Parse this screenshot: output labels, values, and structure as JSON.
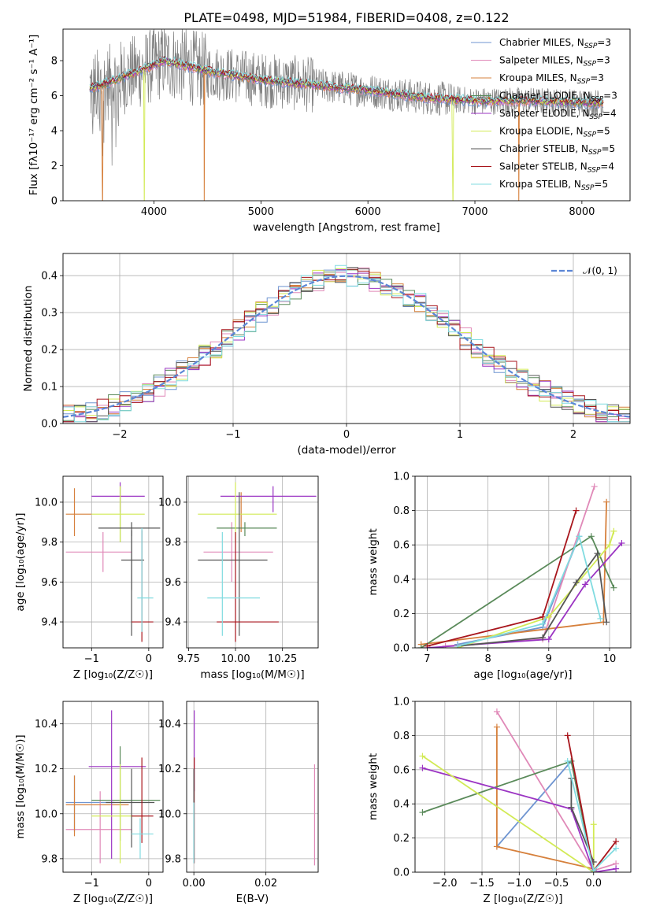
{
  "figure_title": "PLATE=0498, MJD=51984, FIBERID=0408, z=0.122",
  "colors": {
    "miles_chabrier": "#6f95d1",
    "miles_salpeter": "#e089b8",
    "miles_kroupa": "#d6803c",
    "elodie_chabrier": "#5a8a5a",
    "elodie_salpeter": "#9b34c3",
    "elodie_kroupa": "#d2ea55",
    "stelib_chabrier": "#555555",
    "stelib_salpeter": "#a8151c",
    "stelib_kroupa": "#80dbe0",
    "data": "#7f7f7f",
    "normal": "#5b86d6"
  },
  "chart_data": [
    {
      "id": "spectrum",
      "type": "line",
      "title": "PLATE=0498, MJD=51984, FIBERID=0408, z=0.122",
      "xlabel": "wavelength [Angstrom, rest frame]",
      "ylabel": "Flux [fλ10⁻¹⁷ erg cm⁻² s⁻¹ A⁻¹]",
      "xlim": [
        3150,
        8450
      ],
      "ylim": [
        0,
        9.8
      ],
      "xticks": [
        4000,
        5000,
        6000,
        7000,
        8000
      ],
      "yticks": [
        0,
        2,
        4,
        6,
        8
      ],
      "legend": "top-right",
      "grid": false,
      "data_range": [
        3400,
        8200
      ],
      "continuum": {
        "x": [
          3400,
          3600,
          3900,
          4100,
          4500,
          5000,
          5500,
          6000,
          6500,
          7000,
          7500,
          8000,
          8200
        ],
        "y": [
          6.4,
          6.8,
          7.5,
          8.0,
          7.4,
          6.9,
          6.6,
          6.3,
          5.9,
          5.7,
          5.7,
          5.6,
          5.6
        ]
      },
      "series": [
        {
          "name": "Chabrier MILES, N_SSP=3",
          "color_key": "miles_chabrier",
          "dropouts": []
        },
        {
          "name": "Salpeter MILES, N_SSP=3",
          "color_key": "miles_salpeter",
          "dropouts": []
        },
        {
          "name": "Kroupa MILES, N_SSP=3",
          "color_key": "miles_kroupa",
          "dropouts": [
            3520,
            4470,
            7410
          ]
        },
        {
          "name": "Chabrier ELODIE, N_SSP=3",
          "color_key": "elodie_chabrier",
          "dropouts": []
        },
        {
          "name": "Salpeter ELODIE, N_SSP=4",
          "color_key": "elodie_salpeter",
          "dropouts": []
        },
        {
          "name": "Kroupa ELODIE, N_SSP=5",
          "color_key": "elodie_kroupa",
          "dropouts": [
            3910,
            6795
          ]
        },
        {
          "name": "Chabrier STELIB, N_SSP=5",
          "color_key": "stelib_chabrier",
          "dropouts": []
        },
        {
          "name": "Salpeter STELIB, N_SSP=4",
          "color_key": "stelib_salpeter",
          "dropouts": []
        },
        {
          "name": "Kroupa STELIB, N_SSP=5",
          "color_key": "stelib_kroupa",
          "dropouts": []
        }
      ]
    },
    {
      "id": "residuals",
      "type": "line",
      "xlabel": "(data-model)/error",
      "ylabel": "Normed distribution",
      "xlim": [
        -2.5,
        2.5
      ],
      "ylim": [
        0,
        0.46
      ],
      "xticks": [
        -2,
        -1,
        0,
        1,
        2
      ],
      "yticks": [
        0.0,
        0.1,
        0.2,
        0.3,
        0.4
      ],
      "grid": true,
      "legend": "top-right",
      "normal_label": "𝒩(0, 1)",
      "bin_width": 0.1,
      "bins_from": -2.5,
      "bins_to": 2.5
    },
    {
      "id": "age_vs_Z",
      "type": "scatter",
      "xlabel": "Z [log₁₀(Z/Z☉)]",
      "ylabel": "age  [log₁₀(age/yr)]",
      "xlim": [
        -1.5,
        0.25
      ],
      "ylim": [
        9.27,
        10.13
      ],
      "xticks": [
        -1,
        0
      ],
      "yticks": [
        9.4,
        9.6,
        9.8,
        10.0
      ],
      "grid": true,
      "points": [
        {
          "k": "miles_chabrier",
          "x": -1.3,
          "xe": [
            -1.3,
            -1.3
          ],
          "y": 9.94,
          "ye": [
            9.94,
            9.94
          ]
        },
        {
          "k": "miles_salpeter",
          "x": -0.8,
          "xe": [
            -1.45,
            -0.3
          ],
          "y": 9.75,
          "ye": [
            9.65,
            9.85
          ]
        },
        {
          "k": "miles_kroupa",
          "x": -1.3,
          "xe": [
            -1.45,
            -1.0
          ],
          "y": 9.94,
          "ye": [
            9.83,
            10.07
          ]
        },
        {
          "k": "elodie_chabrier",
          "x": -0.5,
          "xe": [
            -0.5,
            -0.5
          ],
          "y": 9.94,
          "ye": [
            9.8,
            10.08
          ]
        },
        {
          "k": "elodie_salpeter",
          "x": -0.5,
          "xe": [
            -1.0,
            -0.07
          ],
          "y": 10.03,
          "ye": [
            9.95,
            10.1
          ]
        },
        {
          "k": "elodie_kroupa",
          "x": -0.5,
          "xe": [
            -1.0,
            -0.07
          ],
          "y": 9.94,
          "ye": [
            9.8,
            10.08
          ]
        },
        {
          "k": "stelib_chabrier",
          "x": -0.3,
          "xe": [
            -0.88,
            0.2
          ],
          "y": 9.87,
          "ye": [
            9.83,
            9.9
          ]
        },
        {
          "k": "stelib_chabrier",
          "x": -0.3,
          "xe": [
            -0.3,
            -0.3
          ],
          "y": 9.71,
          "ye": [
            9.56,
            9.86
          ]
        },
        {
          "k": "stelib_chabrier",
          "x": -0.3,
          "xe": [
            -0.48,
            -0.08
          ],
          "y": 9.71,
          "ye": [
            9.33,
            9.86
          ]
        },
        {
          "k": "stelib_salpeter",
          "x": -0.12,
          "xe": [
            -0.3,
            0.08
          ],
          "y": 9.4,
          "ye": [
            9.3,
            9.86
          ]
        },
        {
          "k": "stelib_kroupa",
          "x": -0.12,
          "xe": [
            -0.2,
            0.08
          ],
          "y": 9.52,
          "ye": [
            9.35,
            9.87
          ]
        }
      ]
    },
    {
      "id": "age_vs_mass",
      "type": "scatter",
      "xlabel": "mass [log₁₀(M/M☉)]",
      "ylabel": "",
      "xlim": [
        9.74,
        10.44
      ],
      "ylim": [
        9.27,
        10.13
      ],
      "xticks": [
        9.75,
        10.0,
        10.25
      ],
      "xticklabels": [
        "9.75",
        "10.00",
        "10.25"
      ],
      "yticks": [
        9.4,
        9.6,
        9.8,
        10.0
      ],
      "grid": true,
      "points": [
        {
          "k": "miles_chabrier",
          "x": 10.05,
          "xe": [
            10.05,
            10.05
          ],
          "y": 10.0,
          "ye": [
            10.0,
            10.0
          ]
        },
        {
          "k": "miles_salpeter",
          "x": 9.98,
          "xe": [
            9.83,
            10.2
          ],
          "y": 9.75,
          "ye": [
            9.6,
            9.9
          ]
        },
        {
          "k": "miles_kroupa",
          "x": 10.03,
          "xe": [
            10.03,
            10.03
          ],
          "y": 9.94,
          "ye": [
            9.85,
            10.05
          ]
        },
        {
          "k": "elodie_chabrier",
          "x": 10.05,
          "xe": [
            9.9,
            10.22
          ],
          "y": 9.87,
          "ye": [
            9.83,
            9.9
          ]
        },
        {
          "k": "elodie_salpeter",
          "x": 10.2,
          "xe": [
            9.92,
            10.43
          ],
          "y": 10.03,
          "ye": [
            9.95,
            10.08
          ]
        },
        {
          "k": "elodie_kroupa",
          "x": 10.0,
          "xe": [
            9.8,
            10.22
          ],
          "y": 9.94,
          "ye": [
            9.8,
            10.1
          ]
        },
        {
          "k": "stelib_chabrier",
          "x": 10.02,
          "xe": [
            9.8,
            10.17
          ],
          "y": 9.71,
          "ye": [
            9.33,
            10.05
          ]
        },
        {
          "k": "stelib_salpeter",
          "x": 10.0,
          "xe": [
            9.9,
            10.23
          ],
          "y": 9.4,
          "ye": [
            9.3,
            9.85
          ]
        },
        {
          "k": "stelib_kroupa",
          "x": 9.93,
          "xe": [
            9.85,
            10.13
          ],
          "y": 9.52,
          "ye": [
            9.33,
            9.85
          ]
        }
      ]
    },
    {
      "id": "mass_weight_vs_age",
      "type": "line",
      "xlabel": "age  [log₁₀(age/yr)]",
      "ylabel": "mass weight",
      "xlim": [
        6.8,
        10.35
      ],
      "ylim": [
        0,
        1.0
      ],
      "xticks": [
        7,
        8,
        9,
        10
      ],
      "yticks": [
        0.0,
        0.2,
        0.4,
        0.6,
        0.8,
        1.0
      ],
      "grid": true,
      "series": [
        {
          "k": "miles_chabrier",
          "x": [
            7.5,
            8.9,
            9.5
          ],
          "y": [
            0.02,
            0.12,
            0.65
          ]
        },
        {
          "k": "miles_salpeter",
          "x": [
            7.3,
            8.9,
            9.75
          ],
          "y": [
            0.01,
            0.05,
            0.94
          ]
        },
        {
          "k": "miles_kroupa",
          "x": [
            6.9,
            9.9,
            9.95
          ],
          "y": [
            0.02,
            0.15,
            0.85
          ]
        },
        {
          "k": "elodie_chabrier",
          "x": [
            6.9,
            9.7,
            10.07
          ],
          "y": [
            0.0,
            0.65,
            0.35
          ]
        },
        {
          "k": "elodie_salpeter",
          "x": [
            7.0,
            9.0,
            9.6,
            10.2
          ],
          "y": [
            0.0,
            0.05,
            0.37,
            0.61
          ]
        },
        {
          "k": "elodie_kroupa",
          "x": [
            7.5,
            9.0,
            10.0,
            10.07
          ],
          "y": [
            0.0,
            0.18,
            0.6,
            0.68
          ]
        },
        {
          "k": "stelib_chabrier",
          "x": [
            7.5,
            8.9,
            9.45,
            9.8,
            9.95
          ],
          "y": [
            0.01,
            0.06,
            0.38,
            0.55,
            0.15
          ]
        },
        {
          "k": "stelib_salpeter",
          "x": [
            7.0,
            8.9,
            9.45
          ],
          "y": [
            0.01,
            0.18,
            0.8
          ]
        },
        {
          "k": "stelib_kroupa",
          "x": [
            7.5,
            8.9,
            9.5,
            9.85
          ],
          "y": [
            0.01,
            0.14,
            0.65,
            0.17
          ]
        }
      ]
    },
    {
      "id": "mass_vs_Z",
      "type": "scatter",
      "xlabel": "Z [log₁₀(Z/Z☉)]",
      "ylabel": "mass [log₁₀(M/M☉)]",
      "xlim": [
        -1.5,
        0.25
      ],
      "ylim": [
        9.74,
        10.5
      ],
      "xticks": [
        -1,
        0
      ],
      "yticks": [
        9.8,
        10.0,
        10.2,
        10.4
      ],
      "grid": true,
      "points": [
        {
          "k": "miles_chabrier",
          "x": -1.3,
          "xe": [
            -1.45,
            -0.6
          ],
          "y": 10.05,
          "ye": [
            9.92,
            10.17
          ]
        },
        {
          "k": "miles_salpeter",
          "x": -0.85,
          "xe": [
            -1.45,
            -0.3
          ],
          "y": 9.93,
          "ye": [
            9.78,
            10.1
          ]
        },
        {
          "k": "miles_kroupa",
          "x": -1.3,
          "xe": [
            -1.45,
            -0.35
          ],
          "y": 10.04,
          "ye": [
            9.9,
            10.17
          ]
        },
        {
          "k": "elodie_chabrier",
          "x": -0.5,
          "xe": [
            -1.0,
            0.2
          ],
          "y": 10.06,
          "ye": [
            9.88,
            10.3
          ]
        },
        {
          "k": "elodie_salpeter",
          "x": -0.65,
          "xe": [
            -1.05,
            -0.05
          ],
          "y": 10.21,
          "ye": [
            9.8,
            10.46
          ]
        },
        {
          "k": "elodie_kroupa",
          "x": -0.5,
          "xe": [
            -1.0,
            -0.07
          ],
          "y": 9.99,
          "ye": [
            9.78,
            10.22
          ]
        },
        {
          "k": "stelib_chabrier",
          "x": -0.3,
          "xe": [
            -0.75,
            0.1
          ],
          "y": 10.05,
          "ye": [
            9.85,
            10.2
          ]
        },
        {
          "k": "stelib_salpeter",
          "x": -0.12,
          "xe": [
            -0.3,
            0.08
          ],
          "y": 9.99,
          "ye": [
            9.87,
            10.25
          ]
        },
        {
          "k": "stelib_kroupa",
          "x": -0.15,
          "xe": [
            -0.3,
            0.08
          ],
          "y": 9.91,
          "ye": [
            9.8,
            9.98
          ]
        }
      ]
    },
    {
      "id": "mass_vs_EBV",
      "type": "scatter",
      "xlabel": "E(B-V)",
      "ylabel": "",
      "xlim": [
        -0.002,
        0.0345
      ],
      "ylim": [
        9.74,
        10.5
      ],
      "xticks": [
        0.0,
        0.02
      ],
      "xticklabels": [
        "0.00",
        "0.02"
      ],
      "yticks": [
        9.8,
        10.0,
        10.2,
        10.4
      ],
      "grid": true,
      "points": [
        {
          "k": "miles_salpeter",
          "x": 0.0335,
          "xe": [
            0.0335,
            0.0335
          ],
          "y": 10.0,
          "ye": [
            9.77,
            10.22
          ]
        },
        {
          "k": "elodie_salpeter",
          "x": 0.0001,
          "xe": [
            0.0001,
            0.0001
          ],
          "y": 10.3,
          "ye": [
            10.1,
            10.46
          ]
        },
        {
          "k": "stelib_salpeter",
          "x": 0.0001,
          "xe": [
            0.0001,
            0.0001
          ],
          "y": 10.0,
          "ye": [
            9.78,
            10.25
          ]
        },
        {
          "k": "stelib_chabrier",
          "x": 0.0,
          "xe": [
            0.0,
            0.0
          ],
          "y": 10.0,
          "ye": [
            9.8,
            10.2
          ]
        },
        {
          "k": "stelib_kroupa",
          "x": 0.0,
          "xe": [
            0.0,
            0.0
          ],
          "y": 9.93,
          "ye": [
            9.78,
            10.05
          ]
        }
      ]
    },
    {
      "id": "mass_weight_vs_Z",
      "type": "line",
      "xlabel": "Z [log₁₀(Z/Z☉)]",
      "ylabel": "mass weight",
      "xlim": [
        -2.4,
        0.5
      ],
      "ylim": [
        0,
        1.0
      ],
      "xticks": [
        -2.0,
        -1.5,
        -1.0,
        -0.5,
        0.0
      ],
      "xticklabels": [
        "−2.0",
        "−1.5",
        "−1.0",
        "−0.5",
        "0.0"
      ],
      "yticks": [
        0.0,
        0.2,
        0.4,
        0.6,
        0.8,
        1.0
      ],
      "grid": true,
      "series": [
        {
          "k": "miles_chabrier",
          "x": [
            -1.3,
            -0.3,
            0.0
          ],
          "y": [
            0.15,
            0.65,
            0.01
          ]
        },
        {
          "k": "miles_salpeter",
          "x": [
            -1.3,
            0.0,
            0.3
          ],
          "y": [
            0.94,
            0.01,
            0.05
          ]
        },
        {
          "k": "miles_kroupa",
          "x": [
            -1.3,
            -1.3,
            0.0
          ],
          "y": [
            0.85,
            0.15,
            0.02
          ]
        },
        {
          "k": "elodie_chabrier",
          "x": [
            -2.3,
            -0.3,
            0.0
          ],
          "y": [
            0.35,
            0.65,
            0.0
          ]
        },
        {
          "k": "elodie_salpeter",
          "x": [
            -2.3,
            -0.3,
            0.0,
            0.3
          ],
          "y": [
            0.61,
            0.37,
            0.0,
            0.02
          ]
        },
        {
          "k": "elodie_kroupa",
          "x": [
            -2.3,
            0.0,
            0.0
          ],
          "y": [
            0.68,
            0.0,
            0.28
          ]
        },
        {
          "k": "stelib_chabrier",
          "x": [
            -0.3,
            -0.3,
            0.0
          ],
          "y": [
            0.55,
            0.38,
            0.06
          ]
        },
        {
          "k": "stelib_salpeter",
          "x": [
            -0.35,
            0.0,
            0.3
          ],
          "y": [
            0.8,
            0.01,
            0.18
          ]
        },
        {
          "k": "stelib_kroupa",
          "x": [
            -0.35,
            0.0,
            0.3
          ],
          "y": [
            0.65,
            0.01,
            0.14
          ]
        }
      ]
    }
  ]
}
